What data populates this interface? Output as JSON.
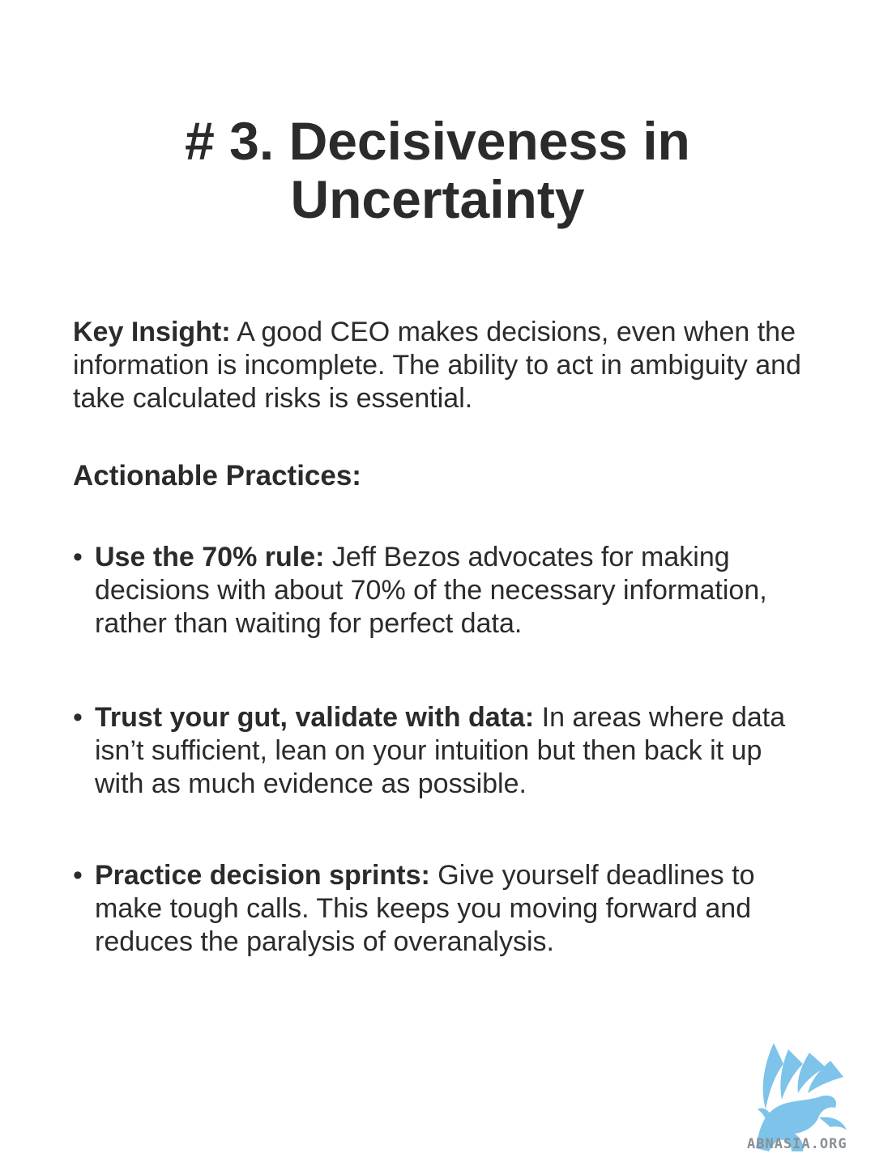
{
  "title": {
    "line1": "# 3. Decisiveness in",
    "line2": "Uncertainty"
  },
  "key_insight": {
    "label": "Key Insight:",
    "text": " A good CEO makes decisions, even when the information is incomplete. The ability to act in ambiguity and take calculated risks is essential."
  },
  "practices_heading": "Actionable Practices:",
  "practices": [
    {
      "bullet": "•",
      "label": "Use the 70% rule:",
      "text": " Jeff Bezos advocates for making decisions with about 70% of the necessary information, rather than waiting for perfect data."
    },
    {
      "bullet": "•",
      "label": "Trust your gut, validate with data:",
      "text": " In areas where data isn’t sufficient, lean on your intuition but then back it up with as much evidence as possible."
    },
    {
      "bullet": "•",
      "label": "Practice decision sprints:",
      "text": " Give yourself deadlines to make tough calls. This keeps you moving forward and reduces the paralysis of overanalysis."
    }
  ],
  "logo": {
    "icon": "griffin-logo-icon",
    "text": "ABNASIA.ORG",
    "color": "#7ec3ea"
  }
}
